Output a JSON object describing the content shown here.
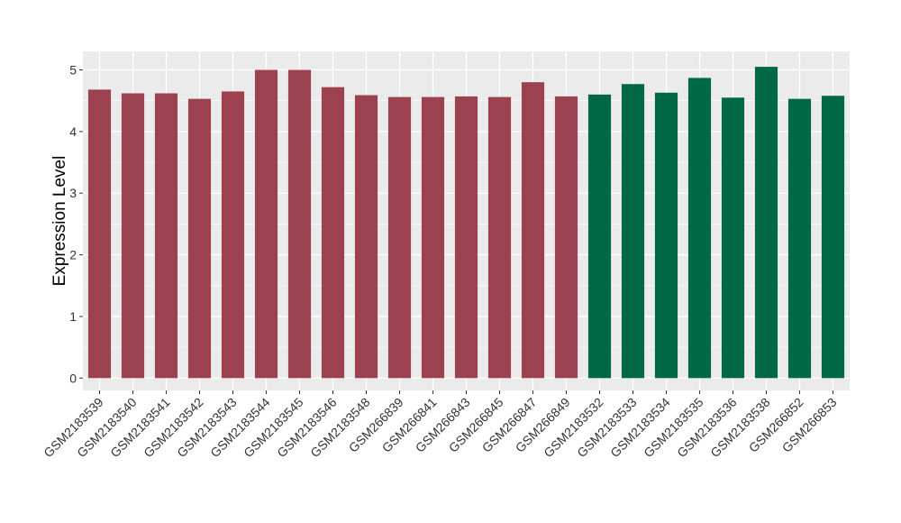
{
  "chart_data": {
    "type": "bar",
    "title": "",
    "xlabel": "",
    "ylabel": "Expression Level",
    "ylim": [
      -0.2,
      5.3
    ],
    "yticks": [
      0,
      1,
      2,
      3,
      4,
      5
    ],
    "grid": true,
    "legend": "none",
    "panel_color": "#EBEBEB",
    "gridline_color": "#FFFFFF",
    "categories": [
      "GSM2183539",
      "GSM2183540",
      "GSM2183541",
      "GSM2183542",
      "GSM2183543",
      "GSM2183544",
      "GSM2183545",
      "GSM2183546",
      "GSM2183548",
      "GSM266839",
      "GSM266841",
      "GSM266843",
      "GSM266845",
      "GSM266847",
      "GSM266849",
      "GSM2183532",
      "GSM2183533",
      "GSM2183534",
      "GSM2183535",
      "GSM2183536",
      "GSM2183538",
      "GSM266852",
      "GSM266853"
    ],
    "values": [
      4.68,
      4.62,
      4.62,
      4.53,
      4.65,
      5.0,
      5.0,
      4.72,
      4.59,
      4.56,
      4.56,
      4.57,
      4.56,
      4.8,
      4.57,
      4.6,
      4.77,
      4.63,
      4.87,
      4.55,
      5.05,
      4.53,
      4.58
    ],
    "group": [
      "a",
      "a",
      "a",
      "a",
      "a",
      "a",
      "a",
      "a",
      "a",
      "a",
      "a",
      "a",
      "a",
      "a",
      "a",
      "b",
      "b",
      "b",
      "b",
      "b",
      "b",
      "b",
      "b"
    ],
    "group_colors": {
      "a": "#9B4150",
      "b": "#006845"
    }
  }
}
